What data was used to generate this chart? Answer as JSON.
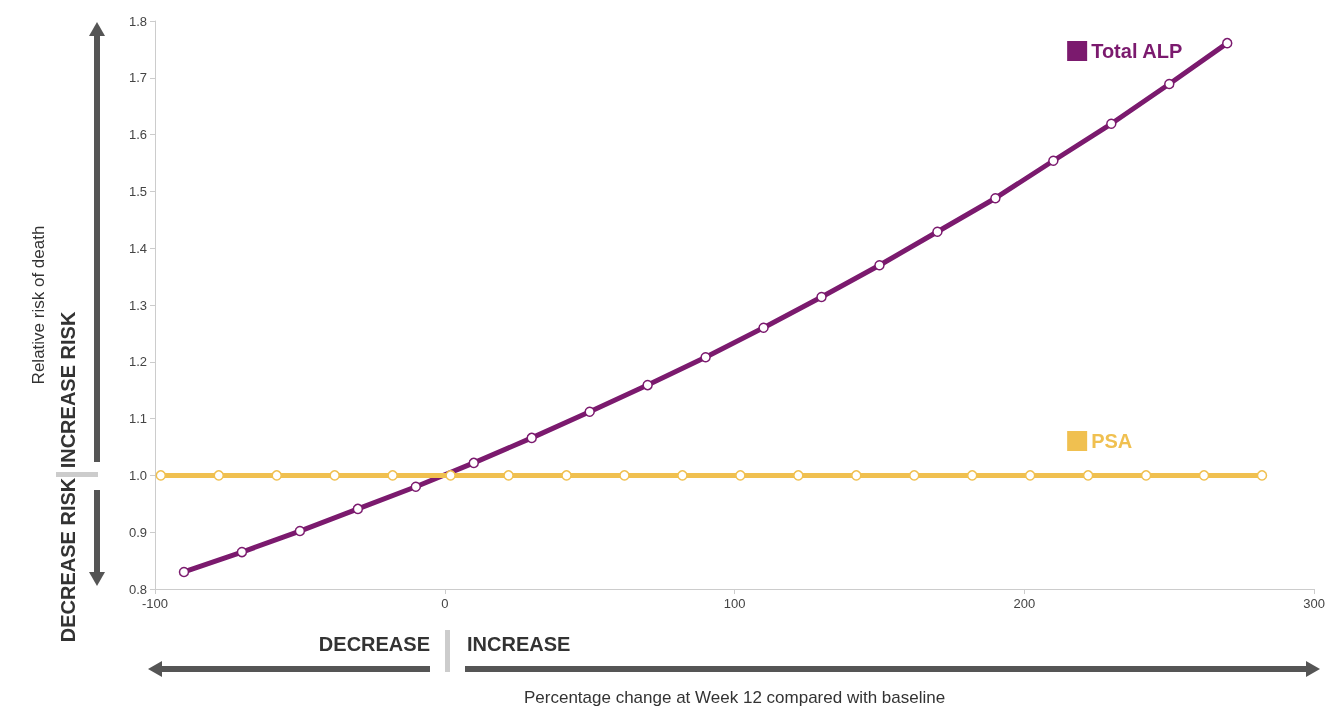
{
  "chart_data": {
    "type": "line",
    "xlabel": "Percentage change at Week 12 compared with baseline",
    "ylabel": "Relative risk of death",
    "annotations": [
      "INCREASE RISK",
      "DECREASE RISK",
      "DECREASE",
      "INCREASE"
    ],
    "series": [
      {
        "name": "Total ALP",
        "color": "#7b1a6e",
        "x": [
          -90,
          -70,
          -50,
          -30,
          -10,
          10,
          30,
          50,
          70,
          90,
          110,
          130,
          150,
          170,
          190,
          210,
          230,
          250,
          270
        ],
        "values": [
          0.83,
          0.865,
          0.902,
          0.941,
          0.98,
          1.022,
          1.066,
          1.112,
          1.159,
          1.208,
          1.26,
          1.314,
          1.37,
          1.429,
          1.488,
          1.554,
          1.619,
          1.689,
          1.761
        ]
      },
      {
        "name": "PSA",
        "color": "#f0c050",
        "x": [
          -98,
          -78,
          -58,
          -38,
          -18,
          2,
          22,
          42,
          62,
          82,
          102,
          122,
          142,
          162,
          182,
          202,
          222,
          242,
          262,
          282
        ],
        "values": [
          1.0,
          1.0,
          1.0,
          1.0,
          1.0,
          1.0,
          1.0,
          1.0,
          1.0,
          1.0,
          1.0,
          1.0,
          1.0,
          1.0,
          1.0,
          1.0,
          1.0,
          1.0,
          1.0,
          1.0
        ]
      }
    ],
    "xlim": [
      -100,
      300
    ],
    "xticks": [
      -100,
      0,
      100,
      200,
      300
    ],
    "ylim": [
      0.8,
      1.8
    ],
    "yticks": [
      0.8,
      0.9,
      {
        "value": 1.0,
        "label": "1.0"
      },
      1.1,
      1.2,
      1.3,
      1.4,
      1.5,
      1.6,
      1.7,
      1.8
    ],
    "marker": "circle",
    "line_style": "solid",
    "grid": false,
    "legend": "top right"
  }
}
